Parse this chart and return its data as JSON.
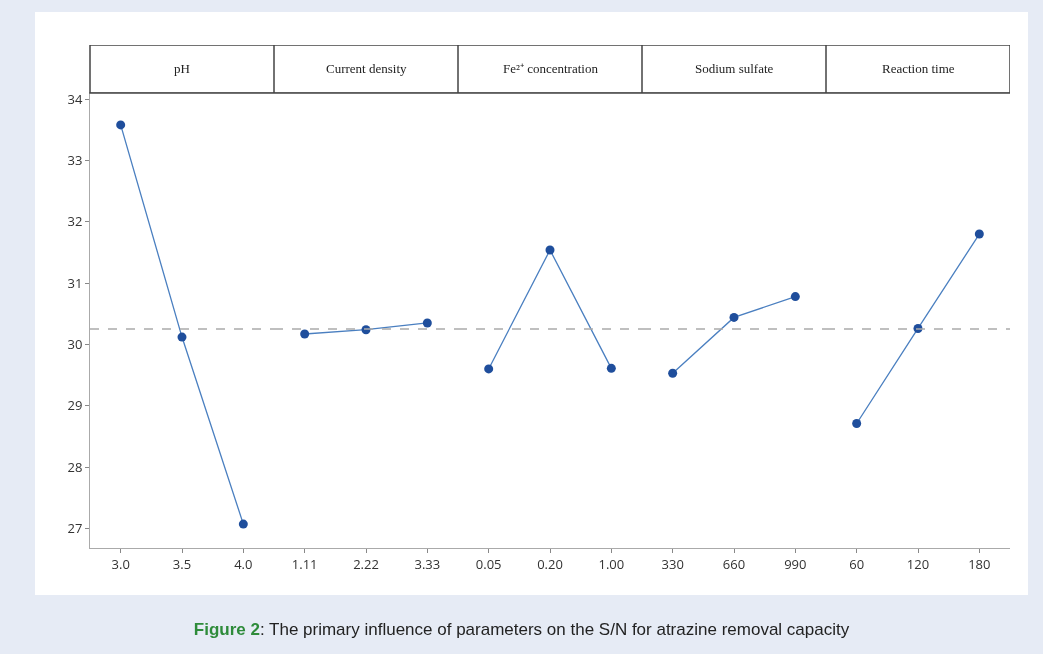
{
  "chart_data": [
    {
      "type": "line",
      "title": "pH",
      "categories": [
        "3.0",
        "3.5",
        "4.0"
      ],
      "series": [
        {
          "color": "#4a7fc0",
          "values": [
            33.58,
            30.12,
            27.07
          ]
        }
      ],
      "marker": "circle",
      "line_style": "solid",
      "ylim": [
        26.68,
        34.1
      ],
      "yticks": [
        27,
        28,
        29,
        30,
        31,
        32,
        33,
        34
      ],
      "grid": false,
      "legend": false,
      "ref_lines": [
        {
          "axis": "y",
          "value": 30.25,
          "color": "#aaaaaa",
          "line_style": "dashed"
        }
      ],
      "annotations": [
        "Figure 2: The primary influence of parameters on the S/N for atrazine removal capacity"
      ]
    },
    {
      "type": "line",
      "title": "Current density",
      "categories": [
        "1.11",
        "2.22",
        "3.33"
      ],
      "series": [
        {
          "color": "#4a7fc0",
          "values": [
            30.17,
            30.24,
            30.35
          ]
        }
      ],
      "marker": "circle",
      "line_style": "solid",
      "ylim": [
        26.68,
        34.1
      ],
      "tick_labels": "x",
      "grid": false,
      "legend": false,
      "ref_lines": [
        {
          "axis": "y",
          "value": 30.25,
          "color": "#aaaaaa",
          "line_style": "dashed"
        }
      ]
    },
    {
      "type": "line",
      "title": "Fe²⁺ concentration",
      "categories": [
        "0.05",
        "0.20",
        "1.00"
      ],
      "series": [
        {
          "color": "#4a7fc0",
          "values": [
            29.6,
            31.54,
            29.61
          ]
        }
      ],
      "marker": "circle",
      "line_style": "solid",
      "ylim": [
        26.68,
        34.1
      ],
      "tick_labels": "x",
      "grid": false,
      "legend": false,
      "ref_lines": [
        {
          "axis": "y",
          "value": 30.25,
          "color": "#aaaaaa",
          "line_style": "dashed"
        }
      ]
    },
    {
      "type": "line",
      "title": "Sodium sulfate",
      "categories": [
        "330",
        "660",
        "990"
      ],
      "series": [
        {
          "color": "#4a7fc0",
          "values": [
            29.53,
            30.44,
            30.78
          ]
        }
      ],
      "marker": "circle",
      "line_style": "solid",
      "ylim": [
        26.68,
        34.1
      ],
      "tick_labels": "x",
      "grid": false,
      "legend": false,
      "ref_lines": [
        {
          "axis": "y",
          "value": 30.25,
          "color": "#aaaaaa",
          "line_style": "dashed"
        }
      ]
    },
    {
      "type": "line",
      "title": "Reaction time",
      "categories": [
        "60",
        "120",
        "180"
      ],
      "series": [
        {
          "color": "#4a7fc0",
          "values": [
            28.71,
            30.26,
            31.8
          ]
        }
      ],
      "marker": "circle",
      "line_style": "solid",
      "ylim": [
        26.68,
        34.1
      ],
      "tick_labels": "x",
      "grid": false,
      "legend": false,
      "ref_lines": [
        {
          "axis": "y",
          "value": 30.25,
          "color": "#aaaaaa",
          "line_style": "dashed"
        }
      ]
    }
  ]
}
